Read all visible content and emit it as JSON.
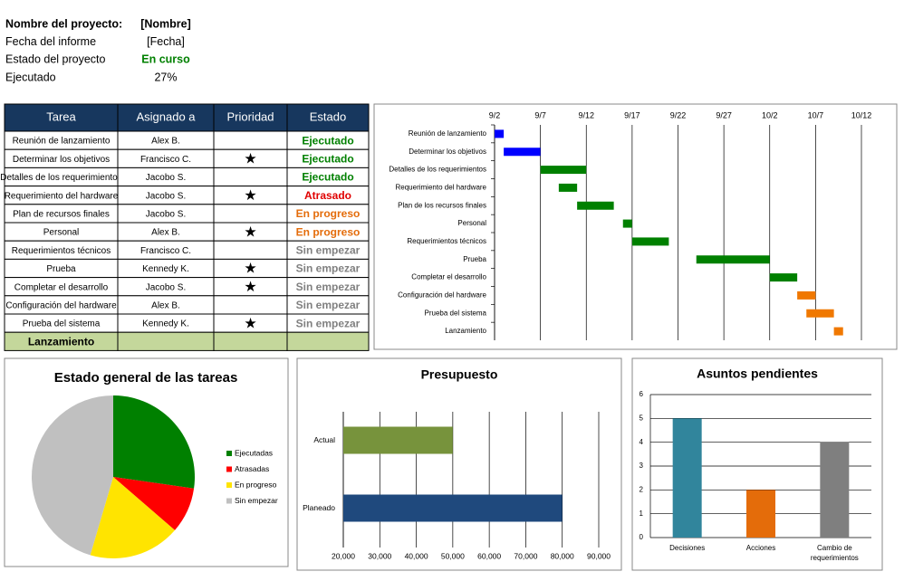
{
  "header": {
    "rows": [
      {
        "label": "Nombre del proyecto:",
        "value": "[Nombre]"
      },
      {
        "label": "Fecha del informe",
        "value": "[Fecha]"
      },
      {
        "label": "Estado del proyecto",
        "value": "En curso",
        "color": "#008000"
      },
      {
        "label": "Ejecutado",
        "value": "27%"
      }
    ]
  },
  "table": {
    "columns": [
      "Tarea",
      "Asignado a",
      "Prioridad",
      "Estado"
    ],
    "rows": [
      {
        "task": "Reunión de lanzamiento",
        "assignee": "Alex B.",
        "priority": null,
        "status": "Ejecutado",
        "color": "#008000"
      },
      {
        "task": "Determinar los objetivos",
        "assignee": "Francisco C.",
        "priority": "★",
        "status": "Ejecutado",
        "color": "#008000"
      },
      {
        "task": "Detalles de los requerimientos",
        "assignee": "Jacobo S.",
        "priority": null,
        "status": "Ejecutado",
        "color": "#008000"
      },
      {
        "task": "Requerimiento del hardware",
        "assignee": "Jacobo S.",
        "priority": "★",
        "status": "Atrasado",
        "color": "#e00000"
      },
      {
        "task": "Plan de recursos finales",
        "assignee": "Jacobo S.",
        "priority": null,
        "status": "En progreso",
        "color": "#e46c0a"
      },
      {
        "task": "Personal",
        "assignee": "Alex B.",
        "priority": "★",
        "status": "En progreso",
        "color": "#e46c0a"
      },
      {
        "task": "Requerimientos técnicos",
        "assignee": "Francisco C.",
        "priority": null,
        "status": "Sin empezar",
        "color": "#808080"
      },
      {
        "task": "Prueba",
        "assignee": "Kennedy K.",
        "priority": "★",
        "status": "Sin empezar",
        "color": "#808080"
      },
      {
        "task": "Completar el desarrollo",
        "assignee": "Jacobo S.",
        "priority": "★",
        "status": "Sin empezar",
        "color": "#808080"
      },
      {
        "task": "Configuración del hardware",
        "assignee": "Alex B.",
        "priority": null,
        "status": "Sin empezar",
        "color": "#808080"
      },
      {
        "task": "Prueba del sistema",
        "assignee": "Kennedy K.",
        "priority": "★",
        "status": "Sin empezar",
        "color": "#808080"
      }
    ],
    "footer": "Lanzamiento"
  },
  "chart_data": [
    {
      "type": "gantt",
      "categories": [
        "Reunión de lanzamiento",
        "Determinar los objetivos",
        "Detalles de los requerimientos",
        "Requerimiento del hardware",
        "Plan de los recursos finales",
        "Personal",
        "Requerimientos técnicos",
        "Prueba",
        "Completar el desarrollo",
        "Configuración del hardware",
        "Prueba del sistema",
        "Lanzamiento"
      ],
      "starts": [
        "9/2",
        "9/3",
        "9/7",
        "9/9",
        "9/11",
        "9/16",
        "9/17",
        "9/24",
        "10/2",
        "10/5",
        "10/6",
        "10/9"
      ],
      "ends": [
        "9/3",
        "9/7",
        "9/12",
        "9/11",
        "9/15",
        "9/17",
        "9/21",
        "10/2",
        "10/5",
        "10/7",
        "10/9",
        "10/10"
      ],
      "colors": [
        "#0000ff",
        "#0000ff",
        "#008000",
        "#008000",
        "#008000",
        "#008000",
        "#008000",
        "#008000",
        "#008000",
        "#f07800",
        "#f07800",
        "#f07800"
      ],
      "xlim": [
        "9/2",
        "10/12"
      ],
      "xticks": [
        "9/2",
        "9/7",
        "9/12",
        "9/17",
        "9/22",
        "9/27",
        "10/2",
        "10/7",
        "10/12"
      ],
      "grid": true
    },
    {
      "type": "pie",
      "title": "Estado general de las tareas",
      "categories": [
        "Ejecutadas",
        "Atrasadas",
        "En progreso",
        "Sin empezar"
      ],
      "values": [
        3,
        1,
        2,
        5
      ],
      "colors": [
        "#008000",
        "#ff0000",
        "#ffe400",
        "#c0c0c0"
      ],
      "legend": "right"
    },
    {
      "type": "hbar",
      "title": "Presupuesto",
      "categories": [
        "Actual",
        "Planeado"
      ],
      "values": [
        50000,
        80000
      ],
      "colors": [
        "#77933c",
        "#1f497d"
      ],
      "xlim": [
        20000,
        90000
      ],
      "xticks": [
        {
          "value": 20000,
          "label": "20,000"
        },
        {
          "value": 30000,
          "label": "30,000"
        },
        {
          "value": 40000,
          "label": "40,000"
        },
        {
          "value": 50000,
          "label": "50,000"
        },
        {
          "value": 60000,
          "label": "60,000"
        },
        {
          "value": 70000,
          "label": "70,000"
        },
        {
          "value": 80000,
          "label": "80,000"
        },
        {
          "value": 90000,
          "label": "90,000"
        }
      ],
      "grid": true
    },
    {
      "type": "bar",
      "title": "Asuntos pendientes",
      "categories": [
        "Decisiones",
        "Acciones",
        "Cambio de requerimientos"
      ],
      "values": [
        5,
        2,
        4
      ],
      "colors": [
        "#31859c",
        "#e46c0a",
        "#7f7f7f"
      ],
      "ylim": [
        0,
        6
      ],
      "yticks": [
        0,
        1,
        2,
        3,
        4,
        5,
        6
      ],
      "grid": true
    }
  ]
}
